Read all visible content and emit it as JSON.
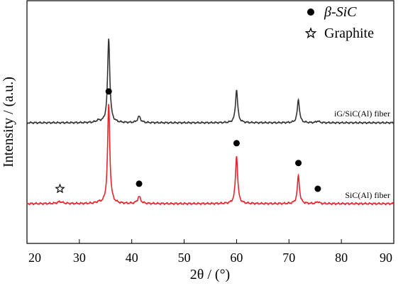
{
  "chart_data": {
    "type": "line",
    "xlabel": "2θ / (°)",
    "ylabel": "Intensity / (a.u.)",
    "xlim": [
      20,
      90
    ],
    "xticks": [
      20,
      30,
      40,
      50,
      60,
      70,
      80,
      90
    ],
    "yticks": "none",
    "grid": false,
    "legend_position": "top-right",
    "legend": [
      {
        "marker": "filled-circle",
        "label": "β-SiC"
      },
      {
        "marker": "open-star",
        "label": "Graphite"
      }
    ],
    "series": [
      {
        "name": "iG/SiC(Al) fiber",
        "color": "#e8242a",
        "baseline": 1.0,
        "peaks": [
          {
            "x": 26.3,
            "height": 0.02,
            "width": 0.6
          },
          {
            "x": 33.6,
            "height": 0.01,
            "width": 0.5
          },
          {
            "x": 35.6,
            "height": 1.0,
            "width": 0.25
          },
          {
            "x": 41.4,
            "height": 0.07,
            "width": 0.35
          },
          {
            "x": 60.0,
            "height": 0.48,
            "width": 0.25
          },
          {
            "x": 71.8,
            "height": 0.28,
            "width": 0.25
          },
          {
            "x": 75.5,
            "height": 0.02,
            "width": 0.3
          }
        ],
        "peak_markers": [
          {
            "x": 26.3,
            "marker": "open-star"
          },
          {
            "x": 35.6,
            "marker": "filled-circle"
          },
          {
            "x": 41.4,
            "marker": "filled-circle"
          },
          {
            "x": 60.0,
            "marker": "filled-circle"
          },
          {
            "x": 71.8,
            "marker": "filled-circle"
          },
          {
            "x": 75.5,
            "marker": "filled-circle"
          }
        ]
      },
      {
        "name": "SiC(Al) fiber",
        "color": "#333333",
        "baseline": 0.0,
        "peaks": [
          {
            "x": 33.6,
            "height": 0.02,
            "width": 0.5
          },
          {
            "x": 35.6,
            "height": 0.95,
            "width": 0.25
          },
          {
            "x": 41.4,
            "height": 0.07,
            "width": 0.35
          },
          {
            "x": 60.0,
            "height": 0.37,
            "width": 0.25
          },
          {
            "x": 71.8,
            "height": 0.26,
            "width": 0.25
          },
          {
            "x": 75.5,
            "height": 0.02,
            "width": 0.3
          }
        ],
        "peak_markers": []
      }
    ]
  }
}
